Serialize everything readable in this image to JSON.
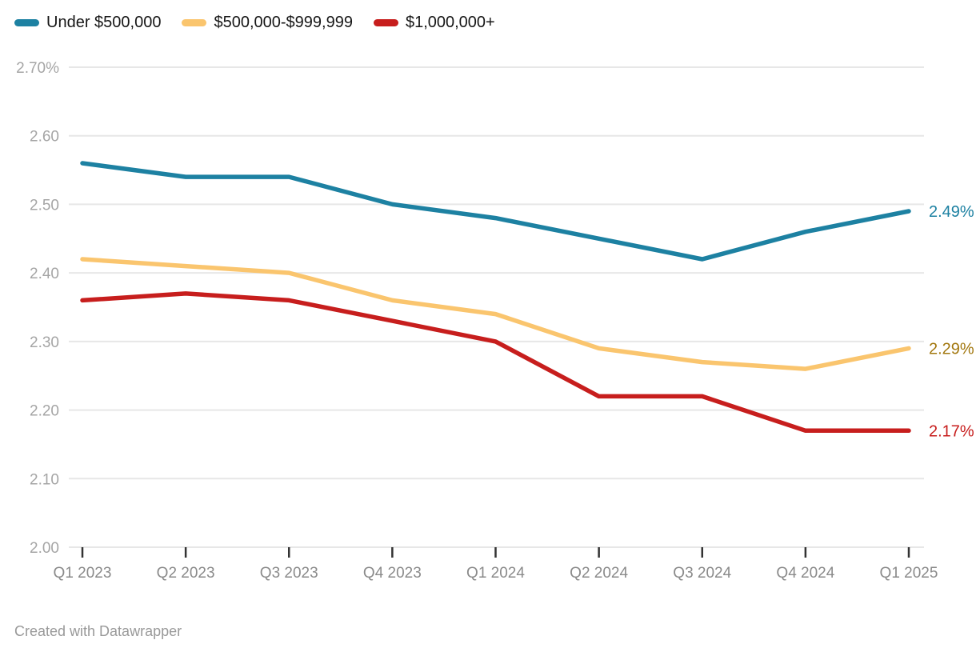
{
  "chart_data": {
    "type": "line",
    "x": [
      "Q1 2023",
      "Q2 2023",
      "Q3 2023",
      "Q4 2023",
      "Q1 2024",
      "Q2 2024",
      "Q3 2024",
      "Q4 2024",
      "Q1 2025"
    ],
    "series": [
      {
        "name": "Under $500,000",
        "color": "#1d81a2",
        "label_color": "#1d81a2",
        "end_label": "2.49%",
        "values": [
          2.56,
          2.54,
          2.54,
          2.5,
          2.48,
          2.45,
          2.42,
          2.46,
          2.49
        ]
      },
      {
        "name": "$500,000-$999,999",
        "color": "#fac56e",
        "label_color": "#a2770e",
        "end_label": "2.29%",
        "values": [
          2.42,
          2.41,
          2.4,
          2.36,
          2.34,
          2.29,
          2.27,
          2.26,
          2.29
        ]
      },
      {
        "name": "$1,000,000+",
        "color": "#c71e1d",
        "label_color": "#c71e1d",
        "end_label": "2.17%",
        "values": [
          2.36,
          2.37,
          2.36,
          2.33,
          2.3,
          2.22,
          2.22,
          2.17,
          2.17
        ]
      }
    ],
    "y_axis": {
      "min": 2.0,
      "max": 2.7,
      "step": 0.1,
      "unit": "%",
      "tick_labels": [
        "2.70%",
        "2.60",
        "2.50",
        "2.40",
        "2.30",
        "2.20",
        "2.10",
        "2.00"
      ]
    },
    "grid": "horizontal",
    "legend_position": "top-left",
    "title": "",
    "xlabel": "",
    "ylabel": ""
  },
  "footer": {
    "text": "Created with Datawrapper"
  },
  "colors": {
    "background": "#ffffff",
    "grid": "#e7e7e7",
    "y_label": "#a5a5a5",
    "x_label": "#8a8a8a",
    "tick": "#333333",
    "legend_text": "#161616",
    "footer_text": "#999999"
  }
}
